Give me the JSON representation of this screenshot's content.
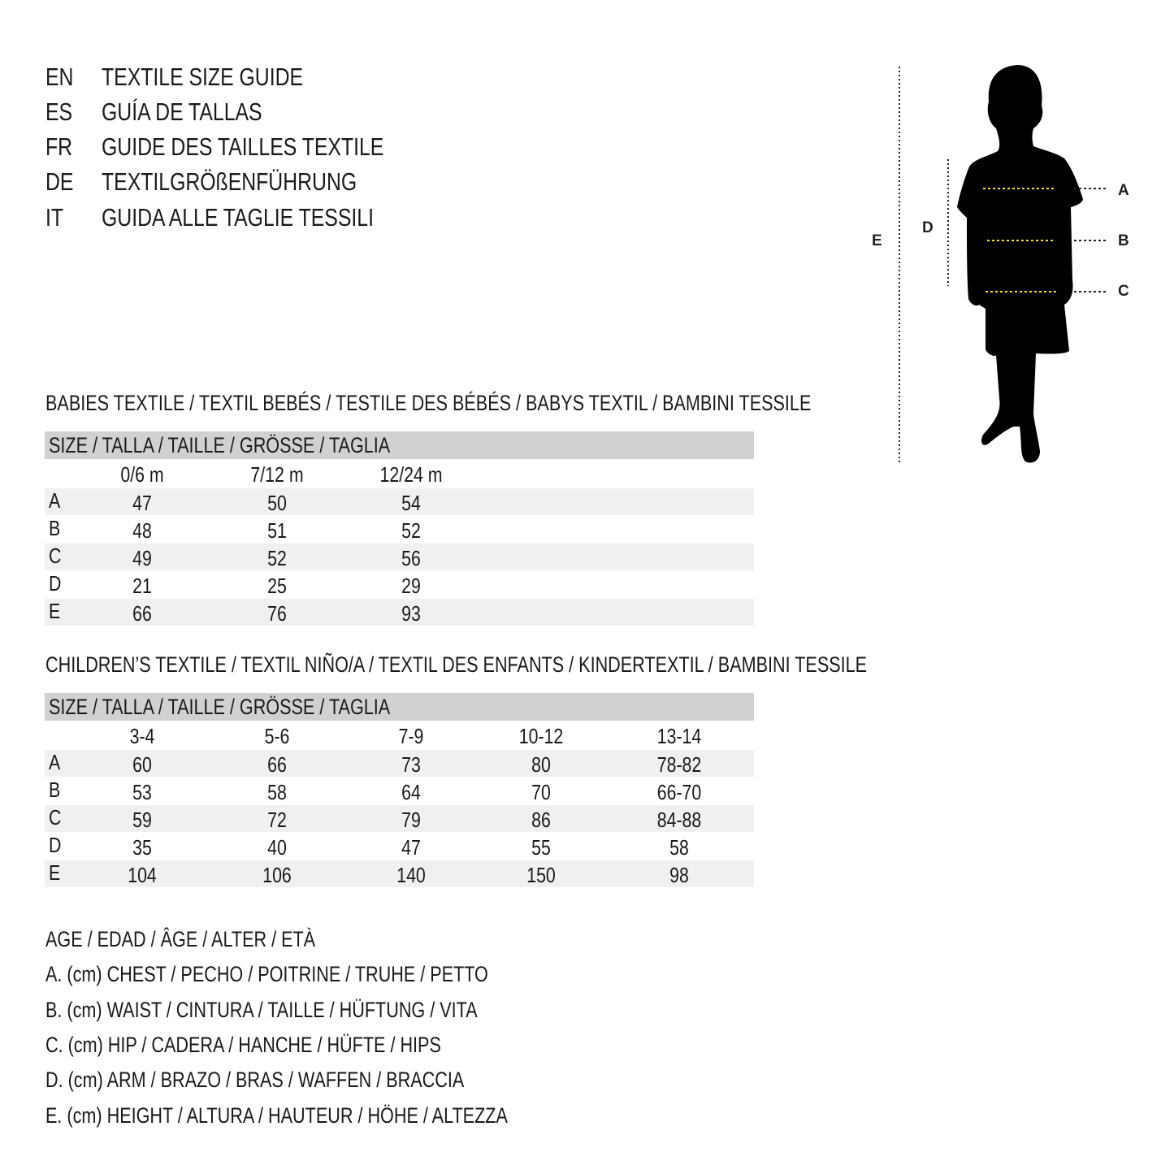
{
  "titles": [
    {
      "code": "EN",
      "text": "TEXTILE SIZE GUIDE"
    },
    {
      "code": "ES",
      "text": "GUÍA DE TALLAS"
    },
    {
      "code": "FR",
      "text": "GUIDE DES TAILLES TEXTILE"
    },
    {
      "code": "DE",
      "text": "TEXTILGRÖßENFÜHRUNG"
    },
    {
      "code": "IT",
      "text": "GUIDA ALLE TAGLIE TESSILI"
    }
  ],
  "figure": {
    "labels": {
      "A": "A",
      "B": "B",
      "C": "C",
      "D": "D",
      "E": "E"
    },
    "accent": "#f2e03a"
  },
  "babies": {
    "heading": "BABIES TEXTILE / TEXTIL BEBÉS / TESTILE DES BÉBÉS / BABYS TEXTIL / BAMBINI TESSILE",
    "size_header": "SIZE / TALLA / TAILLE / GRÖSSE / TAGLIA",
    "columns": [
      "0/6 m",
      "7/12 m",
      "12/24 m"
    ],
    "rows": [
      {
        "label": "A",
        "values": [
          "47",
          "50",
          "54"
        ]
      },
      {
        "label": "B",
        "values": [
          "48",
          "51",
          "52"
        ]
      },
      {
        "label": "C",
        "values": [
          "49",
          "52",
          "56"
        ]
      },
      {
        "label": "D",
        "values": [
          "21",
          "25",
          "29"
        ]
      },
      {
        "label": "E",
        "values": [
          "66",
          "76",
          "93"
        ]
      }
    ]
  },
  "children": {
    "heading": "CHILDREN’S TEXTILE / TEXTIL NIÑO/A / TEXTIL DES ENFANTS / KINDERTEXTIL / BAMBINI TESSILE",
    "size_header": "SIZE / TALLA / TAILLE / GRÖSSE / TAGLIA",
    "columns": [
      "3-4",
      "5-6",
      "7-9",
      "10-12",
      "13-14"
    ],
    "rows": [
      {
        "label": "A",
        "values": [
          "60",
          "66",
          "73",
          "80",
          "78-82"
        ]
      },
      {
        "label": "B",
        "values": [
          "53",
          "58",
          "64",
          "70",
          "66-70"
        ]
      },
      {
        "label": "C",
        "values": [
          "59",
          "72",
          "79",
          "86",
          "84-88"
        ]
      },
      {
        "label": "D",
        "values": [
          "35",
          "40",
          "47",
          "55",
          "58"
        ]
      },
      {
        "label": "E",
        "values": [
          "104",
          "106",
          "140",
          "150",
          "98"
        ]
      }
    ]
  },
  "legend": [
    "AGE / EDAD / ÂGE / ALTER / ETÀ",
    "A. (cm) CHEST / PECHO / POITRINE / TRUHE / PETTO",
    "B. (cm) WAIST / CINTURA / TAILLE / HÜFTUNG / VITA",
    "C. (cm) HIP / CADERA / HANCHE / HÜFTE / HIPS",
    "D. (cm) ARM / BRAZO / BRAS / WAFFEN / BRACCIA",
    "E. (cm) HEIGHT / ALTURA / HAUTEUR / HÖHE / ALTEZZA"
  ]
}
